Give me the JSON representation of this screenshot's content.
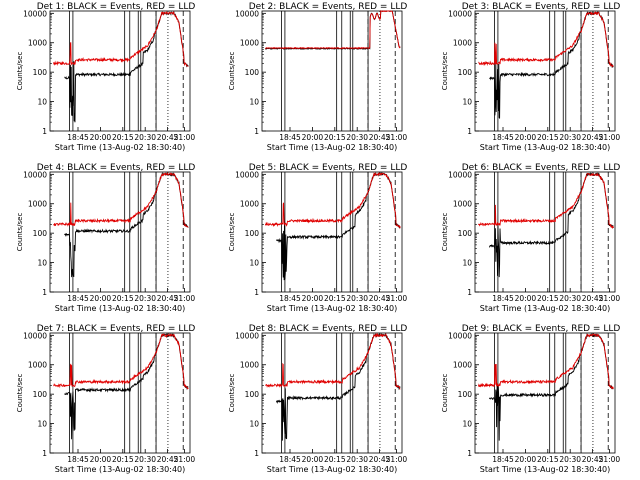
{
  "figure": {
    "background": "#ffffff",
    "black_color": "#000000",
    "red_color": "#e00000"
  },
  "chart_data": [
    {
      "type": "line",
      "title": "Det 1: BLACK = Events, RED = LLD",
      "xlabel": "Start Time (13-Aug-02 18:30:40)",
      "ylabel": "Counts/sec",
      "yscale": "log",
      "ylim": [
        1,
        12000
      ],
      "xlim": [
        "18:30",
        "21:15"
      ],
      "xticks": [
        "18:45",
        "20:00",
        "20:15",
        "20:30",
        "20:45",
        "21:00"
      ],
      "yticks": [
        "1",
        "10",
        "100",
        "1000",
        "10000"
      ],
      "series": [
        {
          "name": "Events",
          "color": "#000000",
          "shape": "A",
          "level": 1.0
        },
        {
          "name": "LLD",
          "color": "#e00000",
          "shape": "A",
          "level": 1.0
        }
      ]
    },
    {
      "type": "line",
      "title": "Det 2: BLACK = Events, RED = LLD",
      "xlabel": "Start Time (13-Aug-02 18:30:40)",
      "ylabel": "Counts/sec",
      "yscale": "log",
      "ylim": [
        1,
        12000
      ],
      "xlim": [
        "18:30",
        "21:15"
      ],
      "xticks": [
        "18:45",
        "20:00",
        "20:15",
        "20:30",
        "20:45",
        "21:00"
      ],
      "yticks": [
        "1",
        "10",
        "100",
        "1000",
        "10000"
      ],
      "series": [
        {
          "name": "Events",
          "color": "#000000",
          "shape": "B",
          "level": 1.0
        },
        {
          "name": "LLD",
          "color": "#e00000",
          "shape": "B",
          "level": 1.0
        }
      ]
    },
    {
      "type": "line",
      "title": "Det 3: BLACK = Events, RED = LLD",
      "xlabel": "Start Time (13-Aug-02 18:30:40)",
      "ylabel": "Counts/sec",
      "yscale": "log",
      "ylim": [
        1,
        12000
      ],
      "xlim": [
        "18:30",
        "21:15"
      ],
      "xticks": [
        "18:45",
        "20:00",
        "20:15",
        "20:30",
        "20:45",
        "21:00"
      ],
      "yticks": [
        "1",
        "10",
        "100",
        "1000",
        "10000"
      ],
      "series": [
        {
          "name": "Events",
          "color": "#000000",
          "shape": "A",
          "level": 1.0
        },
        {
          "name": "LLD",
          "color": "#e00000",
          "shape": "A",
          "level": 1.0
        }
      ]
    },
    {
      "type": "line",
      "title": "Det 4: BLACK = Events, RED = LLD",
      "xlabel": "Start Time (13-Aug-02 18:30:40)",
      "ylabel": "Counts/sec",
      "yscale": "log",
      "ylim": [
        1,
        12000
      ],
      "xlim": [
        "18:30",
        "21:15"
      ],
      "xticks": [
        "18:45",
        "20:00",
        "20:15",
        "20:30",
        "20:45",
        "21:00"
      ],
      "yticks": [
        "1",
        "10",
        "100",
        "1000",
        "10000"
      ],
      "series": [
        {
          "name": "Events",
          "color": "#000000",
          "shape": "A",
          "level": 0.7
        },
        {
          "name": "LLD",
          "color": "#e00000",
          "shape": "A",
          "level": 0.9
        }
      ]
    },
    {
      "type": "line",
      "title": "Det 5: BLACK = Events, RED = LLD",
      "xlabel": "Start Time (13-Aug-02 18:30:40)",
      "ylabel": "Counts/sec",
      "yscale": "log",
      "ylim": [
        1,
        12000
      ],
      "xlim": [
        "18:30",
        "21:15"
      ],
      "xticks": [
        "18:45",
        "20:00",
        "20:15",
        "20:30",
        "20:45",
        "21:00"
      ],
      "yticks": [
        "1",
        "10",
        "100",
        "1000",
        "10000"
      ],
      "series": [
        {
          "name": "Events",
          "color": "#000000",
          "shape": "A",
          "level": 1.1
        },
        {
          "name": "LLD",
          "color": "#e00000",
          "shape": "A",
          "level": 1.4
        }
      ]
    },
    {
      "type": "line",
      "title": "Det 6: BLACK = Events, RED = LLD",
      "xlabel": "Start Time (13-Aug-02 18:30:40)",
      "ylabel": "Counts/sec",
      "yscale": "log",
      "ylim": [
        1,
        12000
      ],
      "xlim": [
        "18:30",
        "21:15"
      ],
      "xticks": [
        "18:45",
        "20:00",
        "20:15",
        "20:30",
        "20:45",
        "21:00"
      ],
      "yticks": [
        "1",
        "10",
        "100",
        "1000",
        "10000"
      ],
      "series": [
        {
          "name": "Events",
          "color": "#000000",
          "shape": "A",
          "level": 1.5
        },
        {
          "name": "LLD",
          "color": "#e00000",
          "shape": "A",
          "level": 1.6
        }
      ]
    },
    {
      "type": "line",
      "title": "Det 7: BLACK = Events, RED = LLD",
      "xlabel": "Start Time (13-Aug-02 18:30:40)",
      "ylabel": "Counts/sec",
      "yscale": "log",
      "ylim": [
        1,
        12000
      ],
      "xlim": [
        "18:30",
        "21:15"
      ],
      "xticks": [
        "18:45",
        "20:00",
        "20:15",
        "20:30",
        "20:45",
        "21:00"
      ],
      "yticks": [
        "1",
        "10",
        "100",
        "1000",
        "10000"
      ],
      "series": [
        {
          "name": "Events",
          "color": "#000000",
          "shape": "A",
          "level": 0.55
        },
        {
          "name": "LLD",
          "color": "#e00000",
          "shape": "A",
          "level": 0.85
        }
      ]
    },
    {
      "type": "line",
      "title": "Det 8: BLACK = Events, RED = LLD",
      "xlabel": "Start Time (13-Aug-02 18:30:40)",
      "ylabel": "Counts/sec",
      "yscale": "log",
      "ylim": [
        1,
        12000
      ],
      "xlim": [
        "18:30",
        "21:15"
      ],
      "xticks": [
        "18:45",
        "20:00",
        "20:15",
        "20:30",
        "20:45",
        "21:00"
      ],
      "yticks": [
        "1",
        "10",
        "100",
        "1000",
        "10000"
      ],
      "series": [
        {
          "name": "Events",
          "color": "#000000",
          "shape": "A",
          "level": 1.1
        },
        {
          "name": "LLD",
          "color": "#e00000",
          "shape": "A",
          "level": 1.3
        }
      ]
    },
    {
      "type": "line",
      "title": "Det 9: BLACK = Events, RED = LLD",
      "xlabel": "Start Time (13-Aug-02 18:30:40)",
      "ylabel": "Counts/sec",
      "yscale": "log",
      "ylim": [
        1,
        12000
      ],
      "xlim": [
        "18:30",
        "21:15"
      ],
      "xticks": [
        "18:45",
        "20:00",
        "20:15",
        "20:30",
        "20:45",
        "21:00"
      ],
      "yticks": [
        "1",
        "10",
        "100",
        "1000",
        "10000"
      ],
      "series": [
        {
          "name": "Events",
          "color": "#000000",
          "shape": "A",
          "level": 0.9
        },
        {
          "name": "LLD",
          "color": "#e00000",
          "shape": "A",
          "level": 1.0
        }
      ]
    }
  ]
}
